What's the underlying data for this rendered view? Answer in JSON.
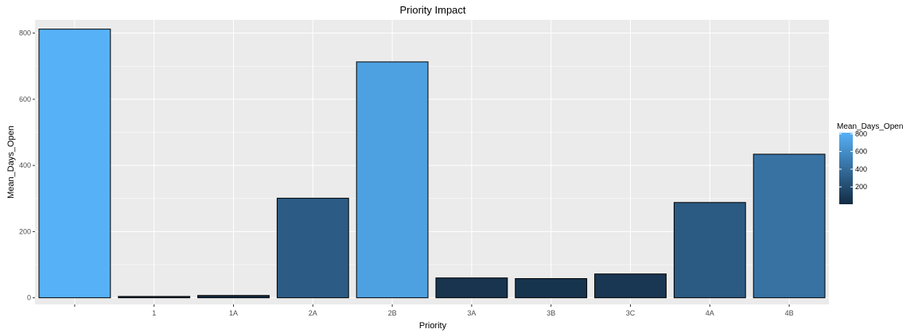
{
  "chart_data": {
    "type": "bar",
    "title": "Priority Impact",
    "xlabel": "Priority",
    "ylabel": "Mean_Days_Open",
    "categories": [
      "",
      "1",
      "1A",
      "2A",
      "2B",
      "3A",
      "3B",
      "3C",
      "4A",
      "4B"
    ],
    "values": [
      812,
      4,
      7,
      301,
      713,
      60,
      58,
      72,
      288,
      434
    ],
    "ylim": [
      -20,
      840
    ],
    "yticks": [
      0,
      200,
      400,
      600,
      800
    ],
    "grid": true,
    "legend": {
      "title": "Mean_Days_Open",
      "placement": "right",
      "ticks": [
        200,
        400,
        600,
        800
      ],
      "range": [
        4,
        812
      ],
      "color_low": "#132B43",
      "color_high": "#56B1F7"
    },
    "colors": {
      "panel_background": "#EBEBEB",
      "grid_major": "#FFFFFF",
      "bar_outline": "#000000"
    }
  }
}
